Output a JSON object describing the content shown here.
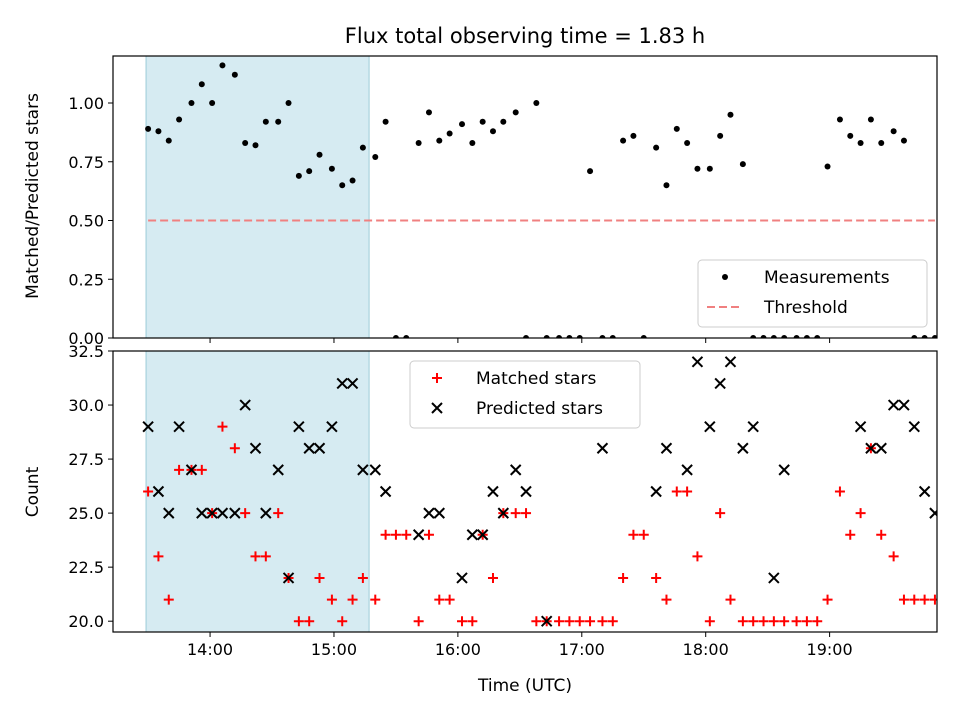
{
  "title": "Flux total observing time = 1.83 h",
  "chart_data": [
    {
      "type": "scatter",
      "ylabel": "Matched/Predicted stars",
      "xlim": [
        "13:13",
        "19:52"
      ],
      "ylim": [
        0,
        1.2
      ],
      "yticks": [
        "0.00",
        "0.25",
        "0.50",
        "0.75",
        "1.00"
      ],
      "ytick_values": [
        0,
        0.25,
        0.5,
        0.75,
        1.0
      ],
      "highlight_span": [
        "13:29",
        "15:17"
      ],
      "legend_position": "lower-right",
      "series": [
        {
          "name": "Measurements",
          "marker": "dot",
          "color": "#000000",
          "points": [
            [
              "13:30",
              0.89
            ],
            [
              "13:35",
              0.88
            ],
            [
              "13:40",
              0.84
            ],
            [
              "13:45",
              0.93
            ],
            [
              "13:51",
              1.0
            ],
            [
              "13:56",
              1.08
            ],
            [
              "14:01",
              1.0
            ],
            [
              "14:06",
              1.16
            ],
            [
              "14:12",
              1.12
            ],
            [
              "14:17",
              0.83
            ],
            [
              "14:22",
              0.82
            ],
            [
              "14:27",
              0.92
            ],
            [
              "14:33",
              0.92
            ],
            [
              "14:38",
              1.0
            ],
            [
              "14:43",
              0.69
            ],
            [
              "14:48",
              0.71
            ],
            [
              "14:53",
              0.78
            ],
            [
              "14:59",
              0.72
            ],
            [
              "15:04",
              0.65
            ],
            [
              "15:09",
              0.67
            ],
            [
              "15:14",
              0.81
            ],
            [
              "15:20",
              0.77
            ],
            [
              "15:25",
              0.92
            ],
            [
              "15:30",
              0.0
            ],
            [
              "15:35",
              0.0
            ],
            [
              "15:41",
              0.83
            ],
            [
              "15:46",
              0.96
            ],
            [
              "15:51",
              0.84
            ],
            [
              "15:56",
              0.87
            ],
            [
              "16:02",
              0.91
            ],
            [
              "16:07",
              0.83
            ],
            [
              "16:12",
              0.92
            ],
            [
              "16:17",
              0.88
            ],
            [
              "16:22",
              0.92
            ],
            [
              "16:28",
              0.96
            ],
            [
              "16:33",
              0.0
            ],
            [
              "16:38",
              1.0
            ],
            [
              "16:43",
              0.0
            ],
            [
              "16:49",
              0.0
            ],
            [
              "16:54",
              0.0
            ],
            [
              "16:59",
              0.0
            ],
            [
              "17:04",
              0.71
            ],
            [
              "17:10",
              0.0
            ],
            [
              "17:15",
              0.0
            ],
            [
              "17:20",
              0.84
            ],
            [
              "17:25",
              0.86
            ],
            [
              "17:30",
              0.0
            ],
            [
              "17:36",
              0.81
            ],
            [
              "17:41",
              0.65
            ],
            [
              "17:46",
              0.89
            ],
            [
              "17:51",
              0.83
            ],
            [
              "17:56",
              0.72
            ],
            [
              "18:02",
              0.72
            ],
            [
              "18:07",
              0.86
            ],
            [
              "18:12",
              0.95
            ],
            [
              "18:18",
              0.74
            ],
            [
              "18:23",
              0.0
            ],
            [
              "18:28",
              0.0
            ],
            [
              "18:33",
              0.0
            ],
            [
              "18:38",
              0.0
            ],
            [
              "18:44",
              0.0
            ],
            [
              "18:49",
              0.0
            ],
            [
              "18:54",
              0.0
            ],
            [
              "18:59",
              0.73
            ],
            [
              "19:05",
              0.93
            ],
            [
              "19:10",
              0.86
            ],
            [
              "19:15",
              0.83
            ],
            [
              "19:20",
              0.93
            ],
            [
              "19:25",
              0.83
            ],
            [
              "19:31",
              0.88
            ],
            [
              "19:36",
              0.84
            ],
            [
              "19:41",
              0.0
            ],
            [
              "19:46",
              0.0
            ],
            [
              "19:51",
              0.0
            ]
          ]
        },
        {
          "name": "Threshold",
          "marker": "dashed-line",
          "color": "#f08080",
          "points": [
            [
              "13:30",
              0.5
            ],
            [
              "19:51",
              0.5
            ]
          ]
        }
      ]
    },
    {
      "type": "scatter",
      "xlabel": "Time (UTC)",
      "ylabel": "Count",
      "xlim": [
        "13:13",
        "19:52"
      ],
      "ylim": [
        19.5,
        32.5
      ],
      "yticks": [
        "20.0",
        "22.5",
        "25.0",
        "27.5",
        "30.0",
        "32.5"
      ],
      "ytick_values": [
        20.0,
        22.5,
        25.0,
        27.5,
        30.0,
        32.5
      ],
      "xticks": [
        "14:00",
        "15:00",
        "16:00",
        "17:00",
        "18:00",
        "19:00"
      ],
      "highlight_span": [
        "13:29",
        "15:17"
      ],
      "legend_position": "upper-center",
      "series": [
        {
          "name": "Matched stars",
          "marker": "plus",
          "color": "#ff0000",
          "points": [
            [
              "13:30",
              26
            ],
            [
              "13:35",
              23
            ],
            [
              "13:40",
              21
            ],
            [
              "13:45",
              27
            ],
            [
              "13:51",
              27
            ],
            [
              "13:56",
              27
            ],
            [
              "14:01",
              25
            ],
            [
              "14:06",
              29
            ],
            [
              "14:12",
              28
            ],
            [
              "14:17",
              25
            ],
            [
              "14:22",
              23
            ],
            [
              "14:27",
              23
            ],
            [
              "14:33",
              25
            ],
            [
              "14:38",
              22
            ],
            [
              "14:43",
              20
            ],
            [
              "14:48",
              20
            ],
            [
              "14:53",
              22
            ],
            [
              "14:59",
              21
            ],
            [
              "15:04",
              20
            ],
            [
              "15:09",
              21
            ],
            [
              "15:14",
              22
            ],
            [
              "15:20",
              21
            ],
            [
              "15:25",
              24
            ],
            [
              "15:30",
              24
            ],
            [
              "15:35",
              24
            ],
            [
              "15:41",
              20
            ],
            [
              "15:46",
              24
            ],
            [
              "15:51",
              21
            ],
            [
              "15:56",
              21
            ],
            [
              "16:02",
              20
            ],
            [
              "16:07",
              20
            ],
            [
              "16:12",
              24
            ],
            [
              "16:17",
              22
            ],
            [
              "16:22",
              25
            ],
            [
              "16:28",
              25
            ],
            [
              "16:33",
              25
            ],
            [
              "16:38",
              20
            ],
            [
              "16:43",
              20
            ],
            [
              "16:49",
              20
            ],
            [
              "16:54",
              20
            ],
            [
              "16:59",
              20
            ],
            [
              "17:04",
              20
            ],
            [
              "17:10",
              20
            ],
            [
              "17:15",
              20
            ],
            [
              "17:20",
              22
            ],
            [
              "17:25",
              24
            ],
            [
              "17:30",
              24
            ],
            [
              "17:36",
              22
            ],
            [
              "17:41",
              21
            ],
            [
              "17:46",
              26
            ],
            [
              "17:51",
              26
            ],
            [
              "17:56",
              23
            ],
            [
              "18:02",
              20
            ],
            [
              "18:07",
              25
            ],
            [
              "18:12",
              21
            ],
            [
              "18:18",
              20
            ],
            [
              "18:23",
              20
            ],
            [
              "18:28",
              20
            ],
            [
              "18:33",
              20
            ],
            [
              "18:38",
              20
            ],
            [
              "18:44",
              20
            ],
            [
              "18:49",
              20
            ],
            [
              "18:54",
              20
            ],
            [
              "18:59",
              21
            ],
            [
              "19:05",
              26
            ],
            [
              "19:10",
              24
            ],
            [
              "19:15",
              25
            ],
            [
              "19:20",
              28
            ],
            [
              "19:25",
              24
            ],
            [
              "19:31",
              23
            ],
            [
              "19:36",
              21
            ],
            [
              "19:41",
              21
            ],
            [
              "19:46",
              21
            ],
            [
              "19:51",
              21
            ]
          ]
        },
        {
          "name": "Predicted stars",
          "marker": "x",
          "color": "#000000",
          "points": [
            [
              "13:30",
              29
            ],
            [
              "13:35",
              26
            ],
            [
              "13:40",
              25
            ],
            [
              "13:45",
              29
            ],
            [
              "13:51",
              27
            ],
            [
              "13:56",
              25
            ],
            [
              "14:01",
              25
            ],
            [
              "14:06",
              25
            ],
            [
              "14:12",
              25
            ],
            [
              "14:17",
              30
            ],
            [
              "14:22",
              28
            ],
            [
              "14:27",
              25
            ],
            [
              "14:33",
              27
            ],
            [
              "14:38",
              22
            ],
            [
              "14:43",
              29
            ],
            [
              "14:48",
              28
            ],
            [
              "14:53",
              28
            ],
            [
              "14:59",
              29
            ],
            [
              "15:04",
              31
            ],
            [
              "15:09",
              31
            ],
            [
              "15:14",
              27
            ],
            [
              "15:20",
              27
            ],
            [
              "15:25",
              26
            ],
            [
              "15:41",
              24
            ],
            [
              "15:46",
              25
            ],
            [
              "15:51",
              25
            ],
            [
              "16:02",
              22
            ],
            [
              "16:07",
              24
            ],
            [
              "16:12",
              24
            ],
            [
              "16:17",
              26
            ],
            [
              "16:22",
              25
            ],
            [
              "16:28",
              27
            ],
            [
              "16:33",
              26
            ],
            [
              "16:43",
              20
            ],
            [
              "17:10",
              28
            ],
            [
              "17:36",
              26
            ],
            [
              "17:41",
              28
            ],
            [
              "17:51",
              27
            ],
            [
              "17:56",
              32
            ],
            [
              "18:02",
              29
            ],
            [
              "18:07",
              31
            ],
            [
              "18:12",
              32
            ],
            [
              "18:18",
              28
            ],
            [
              "18:23",
              29
            ],
            [
              "18:33",
              22
            ],
            [
              "18:38",
              27
            ],
            [
              "19:15",
              29
            ],
            [
              "19:20",
              28
            ],
            [
              "19:25",
              28
            ],
            [
              "19:31",
              30
            ],
            [
              "19:36",
              30
            ],
            [
              "19:41",
              29
            ],
            [
              "19:46",
              26
            ],
            [
              "19:51",
              25
            ]
          ]
        }
      ]
    }
  ]
}
